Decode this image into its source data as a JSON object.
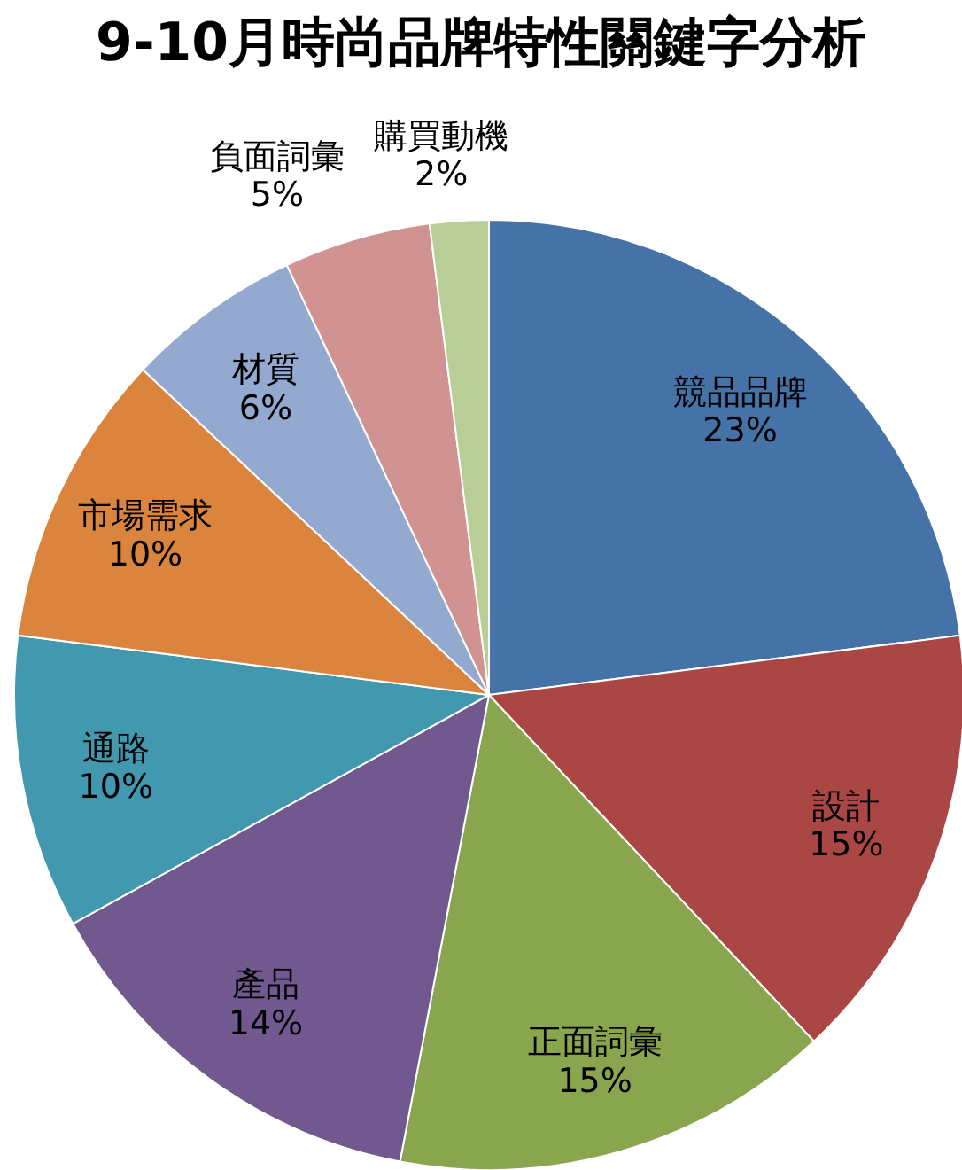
{
  "chart_data": {
    "type": "pie",
    "title": "9-10月時尚品牌特性關鍵字分析",
    "categories": [
      "競品品牌",
      "設計",
      "正面詞彙",
      "產品",
      "通路",
      "市場需求",
      "材質",
      "負面詞彙",
      "購買動機"
    ],
    "values": [
      23,
      15,
      15,
      14,
      10,
      10,
      6,
      5,
      2
    ],
    "value_labels": [
      "23%",
      "15%",
      "15%",
      "14%",
      "10%",
      "10%",
      "6%",
      "5%",
      "2%"
    ],
    "colors": [
      "#4572a7",
      "#aa4643",
      "#89a54e",
      "#71588f",
      "#4198af",
      "#db843d",
      "#93a9cf",
      "#d19392",
      "#b9cd96"
    ],
    "legend": false
  }
}
